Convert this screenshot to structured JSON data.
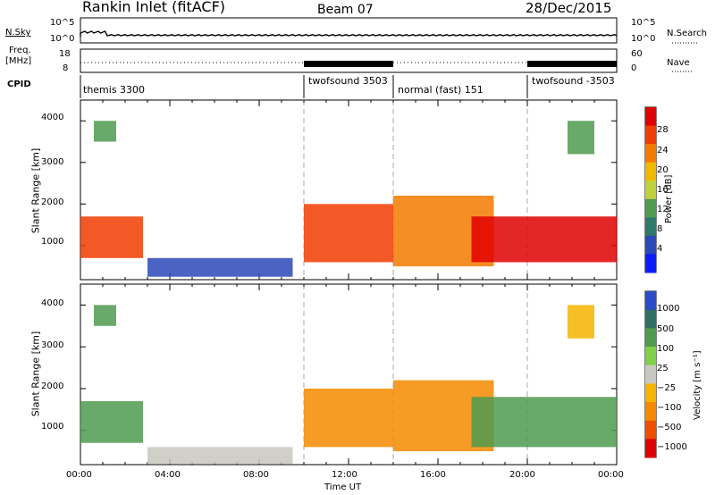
{
  "header": {
    "title": "Rankin Inlet (fitACF)",
    "beam": "Beam 07",
    "date": "28/Dec/2015"
  },
  "nsky": {
    "label": "N.Sky",
    "right_label": "N.Search",
    "y_ticks": [
      "10^5",
      "10^0"
    ],
    "y_ticks_right": [
      "10^5",
      "10^0"
    ]
  },
  "freq": {
    "label_line1": "Freq.",
    "label_line2": "[MHz]",
    "y_ticks": [
      "18",
      "8"
    ],
    "right_label": "Nave",
    "y_ticks_right": [
      "60",
      "0"
    ]
  },
  "cpid": {
    "label": "CPID",
    "segments": [
      {
        "name": "themis 3300",
        "start": 0,
        "end": 10
      },
      {
        "name": "twofsound 3503",
        "start": 10,
        "end": 14
      },
      {
        "name": "normal (fast) 151",
        "start": 14,
        "end": 20
      },
      {
        "name": "twofsound -3503",
        "start": 20,
        "end": 24
      }
    ]
  },
  "chart_data": [
    {
      "type": "heatmap",
      "parameter": "Power",
      "ylabel": "Slant Range [km]",
      "xlabel": "",
      "ylim": [
        180,
        4500
      ],
      "xlim": [
        "00:00",
        "24:00"
      ],
      "y_ticks": [
        "1000",
        "2000",
        "3000",
        "4000"
      ],
      "colorbar": {
        "label": "Power [dB]",
        "ticks": [
          "4",
          "8",
          "12",
          "16",
          "20",
          "24",
          "28"
        ],
        "colors": [
          "#0a1cff",
          "#2b49b8",
          "#2f7a6a",
          "#4f9a4f",
          "#bfd23c",
          "#f1b800",
          "#f57a00",
          "#f03c00",
          "#e00000"
        ]
      },
      "blobs": [
        {
          "t0": 0.0,
          "t1": 2.8,
          "r0": 700,
          "r1": 1700,
          "color": "#f03c00"
        },
        {
          "t0": 0.6,
          "t1": 1.6,
          "r0": 3500,
          "r1": 4000,
          "color": "#4f9a4f"
        },
        {
          "t0": 3.0,
          "t1": 9.5,
          "r0": 250,
          "r1": 700,
          "color": "#2b49b8"
        },
        {
          "t0": 10.0,
          "t1": 14.0,
          "r0": 600,
          "r1": 2000,
          "color": "#f03c00"
        },
        {
          "t0": 14.0,
          "t1": 18.5,
          "r0": 500,
          "r1": 2200,
          "color": "#f57a00"
        },
        {
          "t0": 17.5,
          "t1": 24.0,
          "r0": 600,
          "r1": 1700,
          "color": "#e00000"
        },
        {
          "t0": 21.8,
          "t1": 23.0,
          "r0": 3200,
          "r1": 4000,
          "color": "#4f9a4f"
        }
      ]
    },
    {
      "type": "heatmap",
      "parameter": "Velocity",
      "ylabel": "Slant Range [km]",
      "xlabel": "Time UT",
      "ylim": [
        180,
        4500
      ],
      "xlim": [
        "00:00",
        "24:00"
      ],
      "x_ticks": [
        "00:00",
        "04:00",
        "08:00",
        "12:00",
        "16:00",
        "20:00",
        "00:00"
      ],
      "y_ticks": [
        "1000",
        "2000",
        "3000",
        "4000"
      ],
      "colorbar": {
        "label": "Velocity [m s⁻¹]",
        "ticks": [
          "1000",
          "500",
          "100",
          "25",
          "−25",
          "−100",
          "−500",
          "−1000"
        ],
        "colors": [
          "#2b4cc8",
          "#2f6f66",
          "#4f9a4f",
          "#7fd04a",
          "#c8c8c0",
          "#f5b400",
          "#f58a00",
          "#f04e00",
          "#e00000"
        ]
      },
      "blobs": [
        {
          "t0": 0.0,
          "t1": 2.8,
          "r0": 700,
          "r1": 1700,
          "color": "#4f9a4f"
        },
        {
          "t0": 0.6,
          "t1": 1.6,
          "r0": 3500,
          "r1": 4000,
          "color": "#4f9a4f"
        },
        {
          "t0": 3.0,
          "t1": 9.5,
          "r0": 200,
          "r1": 600,
          "color": "#c8c8c0"
        },
        {
          "t0": 10.0,
          "t1": 14.0,
          "r0": 600,
          "r1": 2000,
          "color": "#f58a00"
        },
        {
          "t0": 14.0,
          "t1": 18.5,
          "r0": 500,
          "r1": 2200,
          "color": "#f58a00"
        },
        {
          "t0": 17.5,
          "t1": 24.0,
          "r0": 600,
          "r1": 1800,
          "color": "#4f9a4f"
        },
        {
          "t0": 21.8,
          "t1": 23.0,
          "r0": 3200,
          "r1": 4000,
          "color": "#f5b400"
        }
      ]
    }
  ]
}
